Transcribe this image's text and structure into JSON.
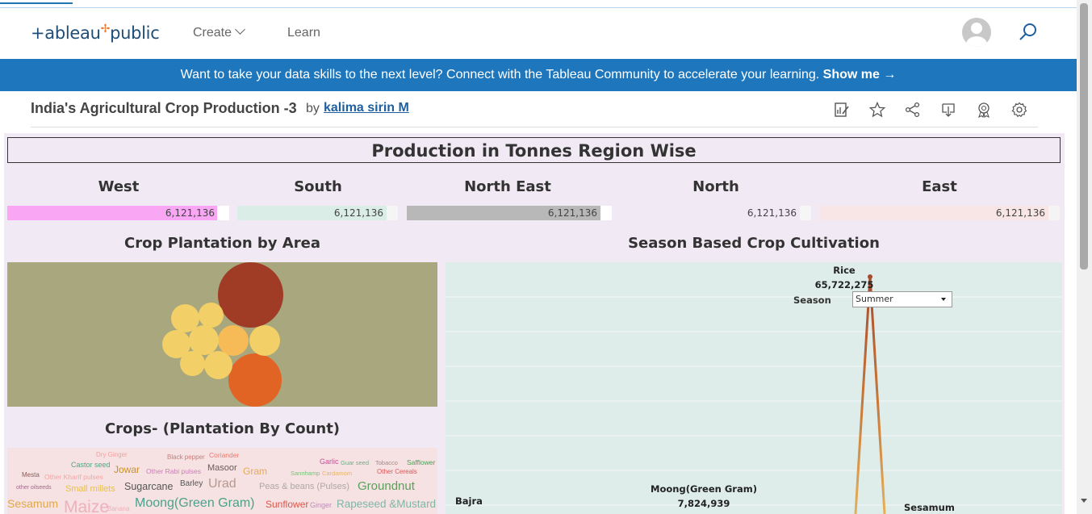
{
  "header": {
    "logo_text": "+ableau",
    "logo_plus": "✢",
    "logo_suffix": "public",
    "nav_create": "Create",
    "nav_learn": "Learn"
  },
  "banner": {
    "text": "Want to take your data skills to the next level? Connect with the Tableau Community to accelerate your learning.",
    "cta": "Show me →"
  },
  "viz": {
    "title": "India's Agricultural Crop Production -3",
    "by": "by",
    "author": "kalima sirin M"
  },
  "dashboard": {
    "title": "Production in Tonnes Region Wise",
    "regions": [
      {
        "name": "West",
        "value": "6,121,136",
        "color": "#f9a6f5"
      },
      {
        "name": "South",
        "value": "6,121,136",
        "color": "#dbede7"
      },
      {
        "name": "North East",
        "value": "6,121,136",
        "color": "#b8b8b8"
      },
      {
        "name": "North",
        "value": "6,121,136",
        "color": "#f1e9f3"
      },
      {
        "name": "East",
        "value": "6,121,136",
        "color": "#f8e6e6"
      }
    ],
    "area_title": "Crop Plantation by Area",
    "crops_title": "Crops- (Plantation By Count)",
    "season_title": "Season Based Crop Cultivation",
    "season_filter_label": "Season",
    "season_filter_value": "Summer",
    "season_labels": {
      "rice_name": "Rice",
      "rice_value": "65,722,275",
      "moong_name": "Moong(Green Gram)",
      "moong_value": "7,824,939",
      "bajra_name": "Bajra",
      "sesamum_name": "Sesamum"
    },
    "wordcloud": [
      {
        "text": "Dry Ginger",
        "color": "#f6a0a0"
      },
      {
        "text": "Black pepper",
        "color": "#c77c7c"
      },
      {
        "text": "Coriander",
        "color": "#ea7a6d"
      },
      {
        "text": "Garlic",
        "color": "#c94c9c"
      },
      {
        "text": "Guar seed",
        "color": "#6ab187"
      },
      {
        "text": "Tobacco",
        "color": "#a58a85"
      },
      {
        "text": "Safflower",
        "color": "#4b9e55"
      },
      {
        "text": "Castor seed",
        "color": "#53a383"
      },
      {
        "text": "Jowar",
        "color": "#c98f2a"
      },
      {
        "text": "Other Rabi pulses",
        "color": "#c87eb4"
      },
      {
        "text": "Masoor",
        "color": "#6a5a5a"
      },
      {
        "text": "Gram",
        "color": "#e6a95a"
      },
      {
        "text": "Sannhamp",
        "color": "#7cbf7c"
      },
      {
        "text": "Cardamom",
        "color": "#e5b66d"
      },
      {
        "text": "Other Cereals",
        "color": "#d9575a"
      },
      {
        "text": "Mesta",
        "color": "#8a5a5a"
      },
      {
        "text": "Other Kharif pulses",
        "color": "#f3a6a6"
      },
      {
        "text": "other oilseeds",
        "color": "#9f6a8a"
      },
      {
        "text": "Small millets",
        "color": "#e6c04d"
      },
      {
        "text": "Sugarcane",
        "color": "#555555"
      },
      {
        "text": "Barley",
        "color": "#555555"
      },
      {
        "text": "Urad",
        "color": "#b79a8f"
      },
      {
        "text": "Peas & beans (Pulses)",
        "color": "#b0a7a7"
      },
      {
        "text": "Groundnut",
        "color": "#5aa05a"
      },
      {
        "text": "Sesamum",
        "color": "#e0a84a"
      },
      {
        "text": "Maize",
        "color": "#efb0ba"
      },
      {
        "text": "Banana",
        "color": "#efb0ba"
      },
      {
        "text": "Moong(Green Gram)",
        "color": "#4aa28a"
      },
      {
        "text": "Sunflower",
        "color": "#d9574a"
      },
      {
        "text": "Ginger",
        "color": "#c08bbd"
      },
      {
        "text": "Rapeseed &Mustard",
        "color": "#7fb7a8"
      }
    ],
    "bubble_colors": [
      "#a03b25",
      "#e26425",
      "#f6ba56",
      "#f2d067"
    ]
  }
}
